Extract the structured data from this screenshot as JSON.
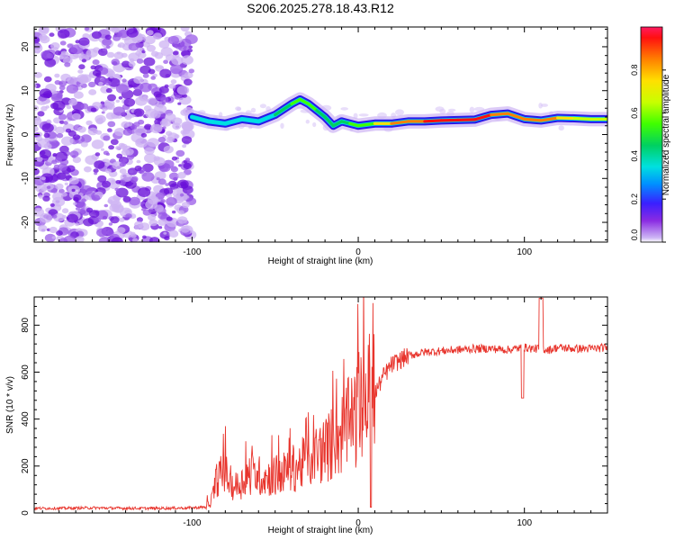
{
  "title": "S206.2025.278.18.43.R12",
  "chart_data": [
    {
      "type": "heatmap",
      "name": "spectrogram",
      "xlabel": "Height of straight line (km)",
      "ylabel": "Frequency (Hz)",
      "xlim": [
        -195,
        150
      ],
      "ylim": [
        -24.5,
        24.5
      ],
      "xticks": [
        -100,
        0,
        100
      ],
      "yticks": [
        -20,
        -10,
        0,
        10,
        20
      ],
      "colorbar": {
        "label": "Normalized spectral amplitude",
        "range": [
          0,
          1
        ],
        "ticks": [
          0.0,
          0.2,
          0.4,
          0.6,
          0.8
        ],
        "tick_labels": [
          "0.0",
          "0.2",
          "0.4",
          "0.6",
          "0.8"
        ]
      },
      "noise_region_end_km": -100,
      "ridge": {
        "x": [
          -100,
          -90,
          -80,
          -70,
          -60,
          -50,
          -40,
          -35,
          -30,
          -25,
          -20,
          -15,
          -10,
          -5,
          0,
          10,
          20,
          30,
          40,
          50,
          60,
          70,
          80,
          90,
          100,
          110,
          120,
          130,
          140,
          150
        ],
        "y": [
          4,
          3,
          2.5,
          3.5,
          3,
          4.5,
          7,
          8,
          7,
          5.5,
          4,
          2,
          3,
          2.5,
          2,
          2.5,
          2.5,
          3,
          3,
          3.2,
          3.3,
          3.4,
          4.5,
          4.8,
          3.5,
          3.2,
          3.8,
          3.7,
          3.5,
          3.5
        ]
      },
      "ridge_amplitude": [
        0.3,
        0.35,
        0.3,
        0.35,
        0.3,
        0.35,
        0.45,
        0.55,
        0.5,
        0.45,
        0.4,
        0.45,
        0.4,
        0.45,
        0.5,
        0.6,
        0.75,
        0.8,
        0.85,
        0.95,
        0.9,
        0.85,
        0.9,
        0.8,
        0.75,
        0.85,
        0.7,
        0.65,
        0.6,
        0.55
      ]
    },
    {
      "type": "line",
      "name": "snr",
      "xlabel": "Height of straight line (km)",
      "ylabel": "SNR (10 * v/v)",
      "xlim": [
        -195,
        150
      ],
      "ylim": [
        0,
        920
      ],
      "xticks": [
        -100,
        0,
        100
      ],
      "yticks": [
        0,
        200,
        400,
        600,
        800
      ],
      "color": "#e8352d",
      "series": [
        {
          "name": "SNR",
          "x": [
            -195,
            -180,
            -160,
            -140,
            -120,
            -100,
            -92,
            -88,
            -85,
            -80,
            -75,
            -70,
            -65,
            -60,
            -55,
            -50,
            -45,
            -40,
            -35,
            -30,
            -25,
            -20,
            -15,
            -10,
            -5,
            0,
            3,
            6,
            8,
            10,
            15,
            20,
            25,
            30,
            40,
            50,
            60,
            70,
            80,
            90,
            95,
            100,
            105,
            110,
            115,
            120,
            130,
            140,
            150
          ],
          "y": [
            20,
            20,
            22,
            20,
            20,
            22,
            25,
            60,
            150,
            170,
            110,
            130,
            170,
            160,
            150,
            160,
            170,
            190,
            200,
            230,
            250,
            270,
            300,
            340,
            380,
            420,
            450,
            500,
            500,
            510,
            580,
            630,
            650,
            670,
            685,
            690,
            695,
            700,
            700,
            695,
            700,
            705,
            700,
            700,
            695,
            705,
            700,
            700,
            705
          ]
        }
      ]
    }
  ],
  "colors": {
    "noise_scatter": "#7a1fd0",
    "snr_line": "#e8352d"
  }
}
